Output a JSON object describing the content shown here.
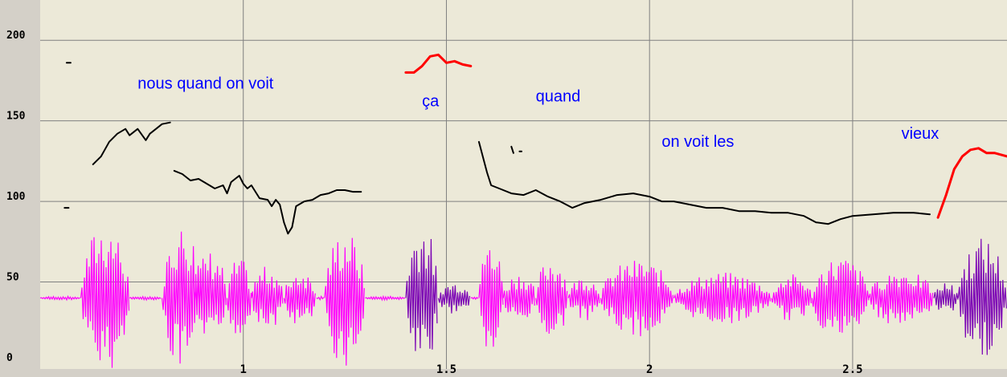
{
  "chart_data": {
    "type": "line",
    "xlim": [
      0.5,
      2.88
    ],
    "ylim": [
      0,
      225
    ],
    "x_ticks": [
      1,
      1.5,
      2,
      2.5
    ],
    "x_tick_labels": [
      "1",
      "1.5",
      "2",
      "2.5"
    ],
    "y_ticks": [
      0,
      50,
      100,
      150,
      200
    ],
    "y_tick_labels": [
      "0",
      "50",
      "100",
      "150",
      "200"
    ],
    "grid": true,
    "colors": {
      "plot_background": "#ece9d8",
      "frame_background": "#d4d0c8",
      "grid": "#808080",
      "pitch_default": "#000000",
      "pitch_highlight": "#ff0000",
      "waveform": "#ff00ff",
      "waveform_highlight": "#7a00b4",
      "word_labels": "#0000ff"
    },
    "annotations": [
      {
        "text": "nous quand on voit",
        "x": 0.74,
        "y": 170
      },
      {
        "text": "ça",
        "x": 1.44,
        "y": 159
      },
      {
        "text": "quand",
        "x": 1.72,
        "y": 162
      },
      {
        "text": "on voit les",
        "x": 2.03,
        "y": 134
      },
      {
        "text": "vieux",
        "x": 2.62,
        "y": 139
      }
    ],
    "series": [
      {
        "name": "pitch-1",
        "color": "#000000",
        "x": [
          0.63,
          0.65,
          0.67,
          0.69,
          0.71,
          0.72,
          0.74,
          0.76,
          0.77,
          0.79,
          0.8,
          0.82
        ],
        "y": [
          123,
          128,
          137,
          142,
          145,
          141,
          145,
          138,
          142,
          146,
          148,
          149
        ]
      },
      {
        "name": "pitch-2",
        "color": "#000000",
        "x": [
          0.83,
          0.85,
          0.87,
          0.89,
          0.91,
          0.93,
          0.95,
          0.96,
          0.97,
          0.98,
          0.99,
          1.0,
          1.01,
          1.02,
          1.04,
          1.06,
          1.07,
          1.08,
          1.09,
          1.1,
          1.11,
          1.12,
          1.13,
          1.15,
          1.17,
          1.19,
          1.21,
          1.23,
          1.25,
          1.27,
          1.29
        ],
        "y": [
          119,
          117,
          113,
          114,
          111,
          108,
          110,
          105,
          112,
          114,
          116,
          111,
          108,
          110,
          102,
          101,
          97,
          101,
          98,
          87,
          80,
          84,
          97,
          100,
          101,
          104,
          105,
          107,
          107,
          106,
          106
        ]
      },
      {
        "name": "pitch-3",
        "color": "#000000",
        "x": [
          1.58,
          1.6,
          1.61,
          1.63,
          1.66,
          1.69,
          1.72,
          1.75,
          1.78,
          1.81,
          1.84,
          1.88,
          1.92,
          1.96,
          2.0,
          2.03,
          2.06,
          2.1,
          2.14,
          2.18,
          2.22,
          2.26,
          2.3,
          2.34,
          2.38,
          2.41,
          2.44,
          2.47,
          2.5,
          2.55,
          2.6,
          2.65,
          2.69
        ],
        "y": [
          137,
          118,
          110,
          108,
          105,
          104,
          107,
          103,
          100,
          96,
          99,
          101,
          104,
          105,
          103,
          100,
          100,
          98,
          96,
          96,
          94,
          94,
          93,
          93,
          91,
          87,
          86,
          89,
          91,
          92,
          93,
          93,
          92
        ]
      },
      {
        "name": "pitch-4",
        "color": "#000000",
        "x": [
          0.56,
          0.57
        ],
        "y": [
          96,
          96
        ]
      },
      {
        "name": "pitch-5",
        "color": "#000000",
        "x": [
          0.565,
          0.575
        ],
        "y": [
          186,
          186
        ]
      },
      {
        "name": "pitch-6",
        "color": "#000000",
        "x": [
          1.66,
          1.665
        ],
        "y": [
          134,
          130
        ]
      },
      {
        "name": "pitch-7",
        "color": "#000000",
        "x": [
          1.68,
          1.685
        ],
        "y": [
          131,
          131
        ]
      },
      {
        "name": "pitch-8",
        "color": "#ff0000",
        "x": [
          1.4,
          1.42,
          1.44,
          1.46,
          1.48,
          1.5,
          1.52,
          1.54,
          1.56
        ],
        "y": [
          180,
          180,
          184,
          190,
          191,
          186,
          187,
          185,
          184
        ]
      },
      {
        "name": "pitch-9",
        "color": "#ff0000",
        "x": [
          2.71,
          2.73,
          2.75,
          2.77,
          2.79,
          2.81,
          2.83,
          2.85,
          2.88
        ],
        "y": [
          90,
          104,
          120,
          128,
          132,
          133,
          130,
          130,
          128
        ]
      }
    ],
    "waveform": {
      "baseline": 40,
      "segments": [
        {
          "x": [
            0.6,
            0.72
          ],
          "amp": 47
        },
        {
          "x": [
            0.8,
            0.9
          ],
          "amp": 46
        },
        {
          "x": [
            0.88,
            0.96
          ],
          "amp": 30
        },
        {
          "x": [
            0.96,
            1.02
          ],
          "amp": 25
        },
        {
          "x": [
            1.02,
            1.1
          ],
          "amp": 20
        },
        {
          "x": [
            1.1,
            1.18
          ],
          "amp": 18
        },
        {
          "x": [
            1.2,
            1.3
          ],
          "amp": 43
        },
        {
          "x": [
            1.4,
            1.48
          ],
          "amp": 47,
          "highlight": true
        },
        {
          "x": [
            1.48,
            1.56
          ],
          "amp": 10,
          "highlight": true
        },
        {
          "x": [
            1.58,
            1.64
          ],
          "amp": 36
        },
        {
          "x": [
            1.64,
            1.72
          ],
          "amp": 16
        },
        {
          "x": [
            1.72,
            1.8
          ],
          "amp": 26
        },
        {
          "x": [
            1.8,
            1.88
          ],
          "amp": 14
        },
        {
          "x": [
            1.88,
            2.06
          ],
          "amp": 24
        },
        {
          "x": [
            2.06,
            2.3
          ],
          "amp": 16
        },
        {
          "x": [
            2.3,
            2.4
          ],
          "amp": 15
        },
        {
          "x": [
            2.4,
            2.54
          ],
          "amp": 26
        },
        {
          "x": [
            2.54,
            2.7
          ],
          "amp": 18
        },
        {
          "x": [
            2.7,
            2.76
          ],
          "amp": 10,
          "highlight": true
        },
        {
          "x": [
            2.76,
            2.88
          ],
          "amp": 38,
          "highlight": true
        }
      ]
    }
  }
}
